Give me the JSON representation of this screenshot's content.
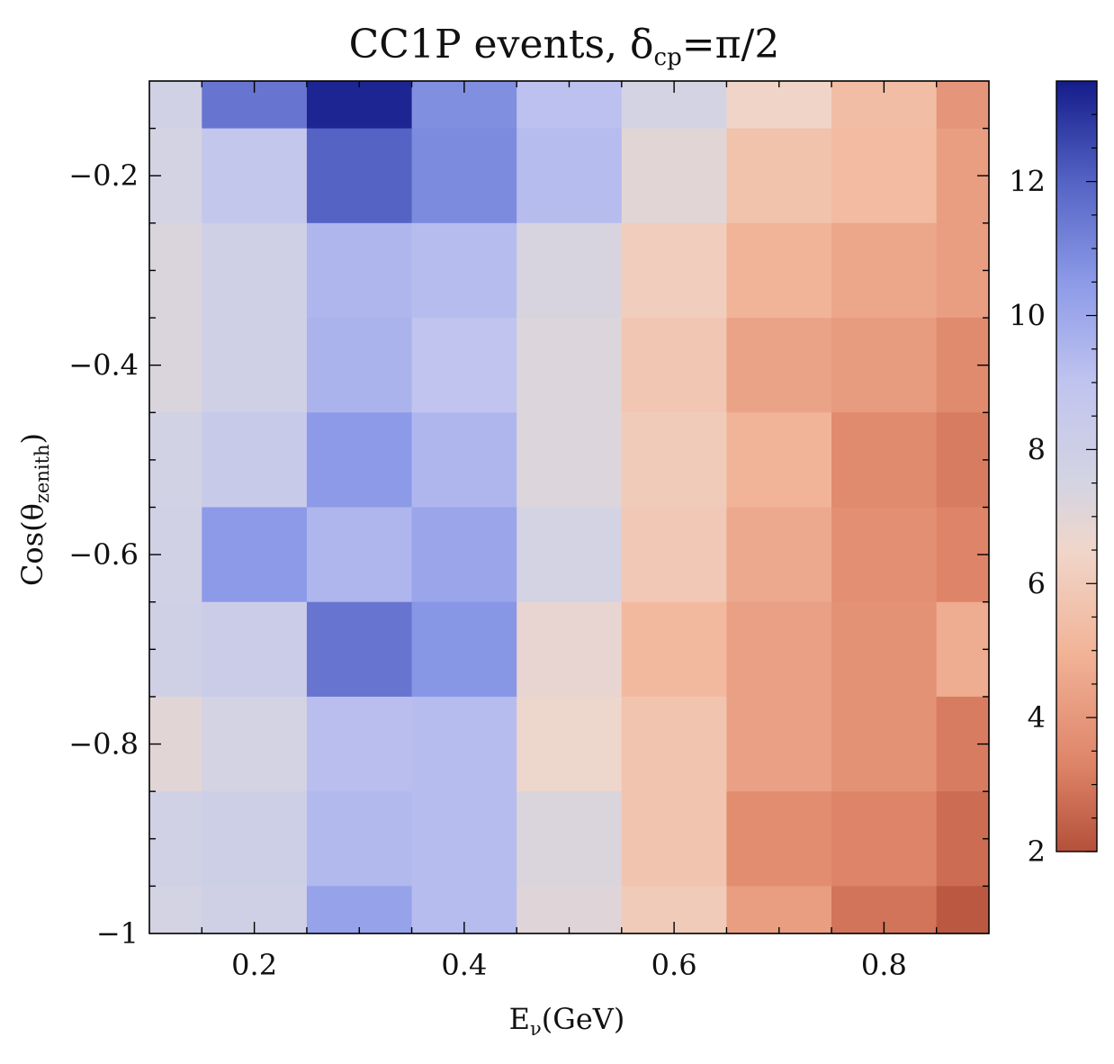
{
  "chart_data": {
    "type": "heatmap",
    "title": "CC1P events, δcp=π/2",
    "title_parts": {
      "main": "CC1P events, δ",
      "sub": "cp",
      "tail": "=π/2"
    },
    "xlabel": "Eν(GeV)",
    "xlabel_parts": {
      "main": "E",
      "sub": "ν",
      "tail": "(GeV)"
    },
    "ylabel": "Cos(θzenith)",
    "ylabel_parts": {
      "main": "Cos(θ",
      "sub": "zenith",
      "tail": ")"
    },
    "xlim": [
      0.1,
      0.9
    ],
    "ylim": [
      -1.0,
      -0.1
    ],
    "x_edges": [
      0.1,
      0.15,
      0.25,
      0.35,
      0.45,
      0.55,
      0.65,
      0.75,
      0.85,
      0.9
    ],
    "y_edges": [
      -1.0,
      -0.95,
      -0.85,
      -0.75,
      -0.65,
      -0.55,
      -0.45,
      -0.35,
      -0.25,
      -0.15,
      -0.1
    ],
    "x_ticks": [
      0.2,
      0.4,
      0.6,
      0.8
    ],
    "x_tick_labels": [
      "0.2",
      "0.4",
      "0.6",
      "0.8"
    ],
    "y_ticks": [
      -1.0,
      -0.8,
      -0.6,
      -0.4,
      -0.2
    ],
    "y_tick_labels": [
      "−1",
      "−0.8",
      "−0.6",
      "−0.4",
      "−0.2"
    ],
    "values_top_to_bottom": [
      [
        7.8,
        11.5,
        13.3,
        10.8,
        9.1,
        7.6,
        6.4,
        5.4,
        3.9
      ],
      [
        7.6,
        8.7,
        12.0,
        10.9,
        9.3,
        7.0,
        5.6,
        5.3,
        4.2
      ],
      [
        7.3,
        7.9,
        9.5,
        9.3,
        7.4,
        6.1,
        5.0,
        4.5,
        4.2
      ],
      [
        7.3,
        7.9,
        9.6,
        9.0,
        7.2,
        5.8,
        4.4,
        4.1,
        3.5
      ],
      [
        7.7,
        8.4,
        10.5,
        9.5,
        7.2,
        6.0,
        5.0,
        3.5,
        3.1
      ],
      [
        7.8,
        10.5,
        9.5,
        10.1,
        7.6,
        5.9,
        4.6,
        3.7,
        3.3
      ],
      [
        7.9,
        8.2,
        11.5,
        10.6,
        6.8,
        5.2,
        4.3,
        3.8,
        4.7
      ],
      [
        7.0,
        7.6,
        9.2,
        9.3,
        6.6,
        5.7,
        4.3,
        3.8,
        3.1
      ],
      [
        7.8,
        8.0,
        9.4,
        9.3,
        7.3,
        5.7,
        3.6,
        3.3,
        2.7
      ],
      [
        7.6,
        7.9,
        10.2,
        9.3,
        7.1,
        6.0,
        4.2,
        2.9,
        2.2
      ]
    ],
    "colorbar": {
      "range": [
        2,
        13.5
      ],
      "ticks": [
        2,
        4,
        6,
        8,
        10,
        12
      ],
      "tick_labels": [
        "2",
        "4",
        "6",
        "8",
        "10",
        "12"
      ],
      "colormap": "coolwarm_r",
      "stops": [
        {
          "value": 2.0,
          "color": "#b4503a"
        },
        {
          "value": 3.3,
          "color": "#de8468"
        },
        {
          "value": 5.0,
          "color": "#f2b498"
        },
        {
          "value": 6.5,
          "color": "#f0d6ca"
        },
        {
          "value": 7.5,
          "color": "#d4d4e2"
        },
        {
          "value": 9.0,
          "color": "#c0c4ef"
        },
        {
          "value": 10.5,
          "color": "#8c9ae8"
        },
        {
          "value": 12.0,
          "color": "#5463c4"
        },
        {
          "value": 13.5,
          "color": "#141c8a"
        }
      ]
    }
  }
}
